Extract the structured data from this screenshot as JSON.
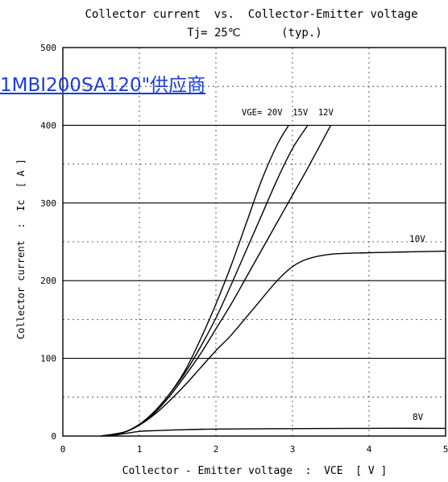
{
  "chart_data": {
    "type": "line",
    "title": "Collector current  vs.  Collector-Emitter voltage",
    "subtitle": "Tj= 25℃      (typ.)",
    "xlabel": "Collector - Emitter voltage  :  VCE  [ V ]",
    "ylabel": "Collector current  :  Ic  [ A ]",
    "xlim": [
      0,
      5
    ],
    "ylim": [
      0,
      500
    ],
    "x_ticks": [
      "0",
      "1",
      "2",
      "3",
      "4",
      "5"
    ],
    "y_ticks": [
      "0",
      "100",
      "200",
      "300",
      "400",
      "500"
    ],
    "grid": true,
    "series_label_group": "VGE= 20V  15V  12V",
    "series": [
      {
        "name": "20V",
        "x": [
          0.5,
          0.8,
          1.0,
          1.2,
          1.4,
          1.6,
          1.8,
          2.0,
          2.2,
          2.4,
          2.6,
          2.8,
          2.95
        ],
        "y": [
          0,
          5,
          15,
          32,
          55,
          85,
          125,
          170,
          220,
          275,
          330,
          375,
          400
        ]
      },
      {
        "name": "15V",
        "x": [
          0.5,
          0.8,
          1.0,
          1.2,
          1.4,
          1.6,
          1.8,
          2.0,
          2.2,
          2.4,
          2.6,
          2.8,
          3.0,
          3.2
        ],
        "y": [
          0,
          5,
          15,
          32,
          55,
          82,
          115,
          152,
          195,
          240,
          285,
          330,
          370,
          400
        ]
      },
      {
        "name": "12V",
        "x": [
          0.5,
          0.8,
          1.0,
          1.2,
          1.4,
          1.6,
          1.8,
          2.0,
          2.2,
          2.4,
          2.6,
          2.8,
          3.0,
          3.2,
          3.5
        ],
        "y": [
          0,
          5,
          15,
          30,
          52,
          78,
          106,
          138,
          170,
          205,
          240,
          275,
          310,
          345,
          400
        ]
      },
      {
        "name": "10V",
        "label": "10V",
        "x": [
          0.5,
          0.8,
          1.0,
          1.2,
          1.4,
          1.6,
          1.8,
          2.0,
          2.2,
          2.5,
          2.8,
          3.0,
          3.2,
          3.5,
          4.0,
          4.5,
          5.0
        ],
        "y": [
          0,
          5,
          14,
          28,
          46,
          66,
          88,
          110,
          130,
          165,
          200,
          218,
          228,
          234,
          236,
          237,
          238
        ]
      },
      {
        "name": "8V",
        "label": "8V",
        "x": [
          0.6,
          0.8,
          1.0,
          1.2,
          1.5,
          2.0,
          3.0,
          4.0,
          5.0
        ],
        "y": [
          0,
          3,
          6,
          7,
          8,
          9,
          9.5,
          10,
          10
        ]
      }
    ]
  },
  "watermark": "1MBI200SA120\"供应商"
}
